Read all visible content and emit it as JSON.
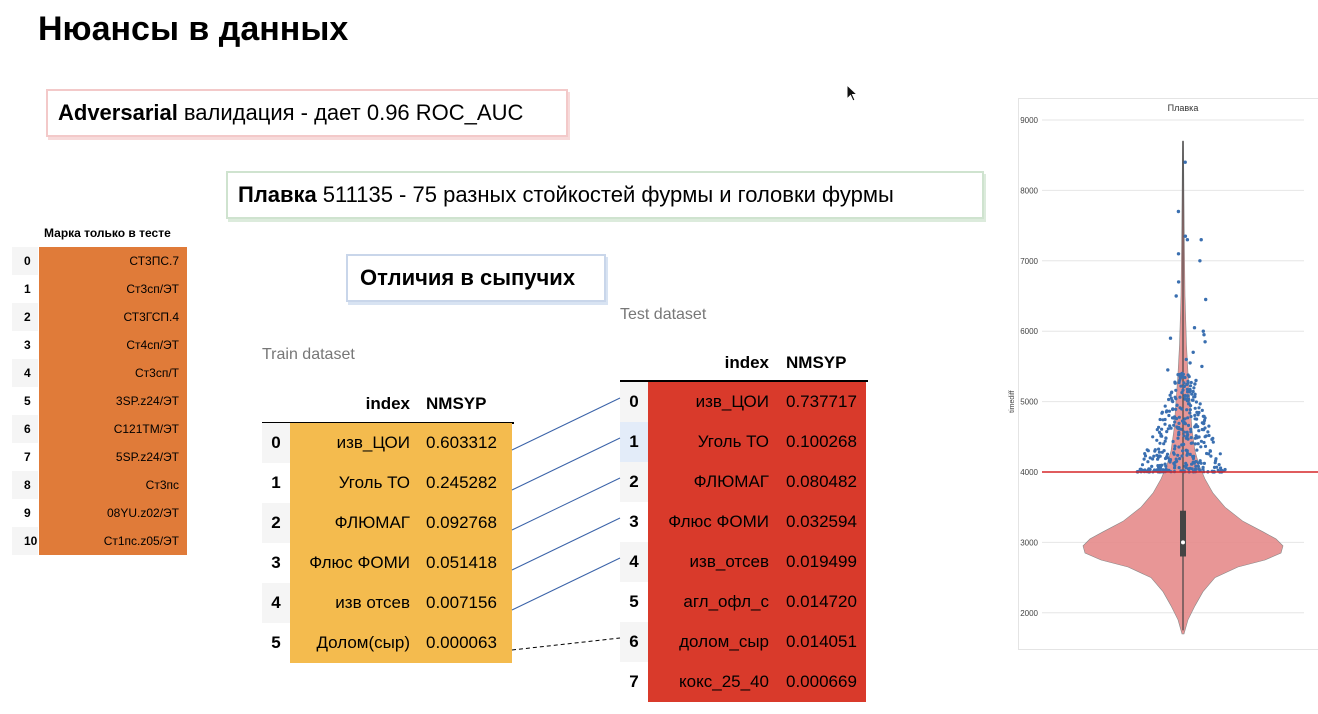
{
  "slide": {
    "title": "Нюансы в данных",
    "adversarial": {
      "bold": "Adversarial",
      "text": "валидация - дает 0.96 ROC_AUC"
    },
    "plavka": {
      "bold": "Плавка",
      "text": "511135 - 75 разных стойкостей фурмы и головки фурмы"
    },
    "diff_label": "Отличия в сыпучих"
  },
  "marka_table": {
    "header": "Марка только в тесте",
    "rows": [
      {
        "idx": "0",
        "value": "СТ3ПС.7"
      },
      {
        "idx": "1",
        "value": "Ст3сп/ЭТ"
      },
      {
        "idx": "2",
        "value": "СТ3ГСП.4"
      },
      {
        "idx": "3",
        "value": "Ст4сп/ЭТ"
      },
      {
        "idx": "4",
        "value": "Ст3сп/Т"
      },
      {
        "idx": "5",
        "value": "3SP.z24/ЭТ"
      },
      {
        "idx": "6",
        "value": "С121ТМ/ЭТ"
      },
      {
        "idx": "7",
        "value": "5SP.z24/ЭТ"
      },
      {
        "idx": "8",
        "value": "Ст3пс"
      },
      {
        "idx": "9",
        "value": "08YU.z02/ЭТ"
      },
      {
        "idx": "10",
        "value": "Ст1пс.z05/ЭТ"
      }
    ]
  },
  "train_table": {
    "caption": "Train dataset",
    "col_index": "index",
    "col_value": "NMSYP",
    "rows": [
      {
        "idx": "0",
        "name": "изв_ЦОИ",
        "value": "0.603312"
      },
      {
        "idx": "1",
        "name": "Уголь ТО",
        "value": "0.245282"
      },
      {
        "idx": "2",
        "name": "ФЛЮМАГ",
        "value": "0.092768"
      },
      {
        "idx": "3",
        "name": "Флюс ФОМИ",
        "value": "0.051418"
      },
      {
        "idx": "4",
        "name": "изв отсев",
        "value": "0.007156"
      },
      {
        "idx": "5",
        "name": "Долом(сыр)",
        "value": "0.000063"
      }
    ]
  },
  "test_table": {
    "caption": "Test dataset",
    "col_index": "index",
    "col_value": "NMSYP",
    "rows": [
      {
        "idx": "0",
        "name": "изв_ЦОИ",
        "value": "0.737717"
      },
      {
        "idx": "1",
        "name": "Уголь ТО",
        "value": "0.100268"
      },
      {
        "idx": "2",
        "name": "ФЛЮМАГ",
        "value": "0.080482"
      },
      {
        "idx": "3",
        "name": "Флюс ФОМИ",
        "value": "0.032594"
      },
      {
        "idx": "4",
        "name": "изв_отсев",
        "value": "0.019499"
      },
      {
        "idx": "5",
        "name": "агл_офл_с",
        "value": "0.014720"
      },
      {
        "idx": "6",
        "name": "долом_сыр",
        "value": "0.014051"
      },
      {
        "idx": "7",
        "name": "кокс_25_40",
        "value": "0.000669"
      }
    ]
  },
  "links": [
    {
      "train": 0,
      "test": 0,
      "style": "solid"
    },
    {
      "train": 1,
      "test": 1,
      "style": "solid"
    },
    {
      "train": 2,
      "test": 2,
      "style": "solid"
    },
    {
      "train": 3,
      "test": 3,
      "style": "solid"
    },
    {
      "train": 4,
      "test": 4,
      "style": "solid"
    },
    {
      "train": 5,
      "test": 6,
      "style": "dashed"
    }
  ],
  "colors": {
    "marka": "#e07b39",
    "train": "#f4bb4e",
    "test": "#d93a2b",
    "link": "#3a62a8",
    "violin": "#e58b8b",
    "points": "#3a6fb0",
    "threshold": "#d62728"
  },
  "chart_data": {
    "type": "violin",
    "title": "Плавка",
    "ylabel": "timediff",
    "ylim": [
      1500,
      9000
    ],
    "yticks": [
      2000,
      3000,
      4000,
      5000,
      6000,
      7000,
      8000,
      9000
    ],
    "grid": true,
    "threshold": 4000,
    "box": {
      "q1": 2800,
      "median": 3000,
      "q3": 3450,
      "whisker_low": 1750,
      "whisker_high": 8700
    },
    "violin_profile": [
      [
        1700,
        0.01
      ],
      [
        1900,
        0.05
      ],
      [
        2100,
        0.12
      ],
      [
        2300,
        0.2
      ],
      [
        2500,
        0.32
      ],
      [
        2650,
        0.55
      ],
      [
        2750,
        0.82
      ],
      [
        2850,
        0.98
      ],
      [
        2950,
        1.0
      ],
      [
        3050,
        0.93
      ],
      [
        3150,
        0.8
      ],
      [
        3300,
        0.6
      ],
      [
        3500,
        0.42
      ],
      [
        3700,
        0.3
      ],
      [
        3900,
        0.22
      ],
      [
        4100,
        0.16
      ],
      [
        4300,
        0.12
      ],
      [
        4600,
        0.09
      ],
      [
        5000,
        0.07
      ],
      [
        5400,
        0.05
      ],
      [
        5800,
        0.035
      ],
      [
        6500,
        0.02
      ],
      [
        7500,
        0.012
      ],
      [
        8700,
        0.005
      ]
    ],
    "outlier_points": [
      8400,
      7700,
      7300,
      7100,
      7350,
      7300,
      7000,
      6700,
      6500,
      6450,
      6050,
      5950,
      5900,
      5850,
      6000,
      5700,
      5600,
      5550,
      5500,
      5450,
      5400,
      5350,
      5300,
      5250
    ]
  }
}
